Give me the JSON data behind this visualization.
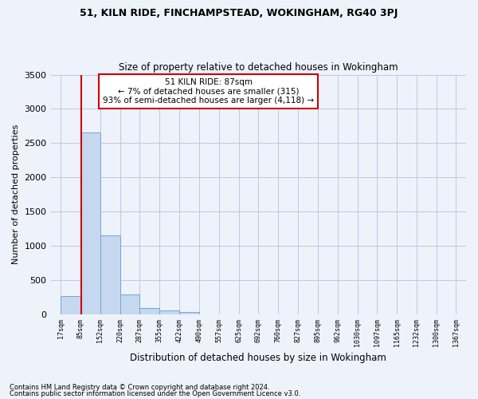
{
  "title1": "51, KILN RIDE, FINCHAMPSTEAD, WOKINGHAM, RG40 3PJ",
  "title2": "Size of property relative to detached houses in Wokingham",
  "xlabel": "Distribution of detached houses by size in Wokingham",
  "ylabel": "Number of detached properties",
  "footnote1": "Contains HM Land Registry data © Crown copyright and database right 2024.",
  "footnote2": "Contains public sector information licensed under the Open Government Licence v3.0.",
  "annotation_title": "51 KILN RIDE: 87sqm",
  "annotation_line1": "← 7% of detached houses are smaller (315)",
  "annotation_line2": "93% of semi-detached houses are larger (4,118) →",
  "property_size_sqm": 87,
  "bar_edges": [
    17,
    85,
    152,
    220,
    287,
    355,
    422,
    490,
    557,
    625,
    692,
    760,
    827,
    895,
    962,
    1030,
    1097,
    1165,
    1232,
    1300,
    1367
  ],
  "bar_values": [
    270,
    2650,
    1150,
    290,
    90,
    60,
    35,
    0,
    0,
    0,
    0,
    0,
    0,
    0,
    0,
    0,
    0,
    0,
    0,
    0
  ],
  "bar_color": "#c5d8f0",
  "bar_edge_color": "#6fa8d4",
  "vline_color": "#cc0000",
  "annotation_box_color": "#cc0000",
  "bg_color": "#eef2fb",
  "plot_bg_color": "#eef2fb",
  "grid_color": "#c0c8e0",
  "ylim": [
    0,
    3500
  ],
  "yticks": [
    0,
    500,
    1000,
    1500,
    2000,
    2500,
    3000,
    3500
  ]
}
